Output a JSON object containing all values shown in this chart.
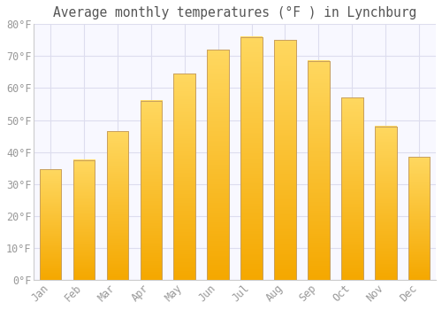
{
  "title": "Average monthly temperatures (°F ) in Lynchburg",
  "months": [
    "Jan",
    "Feb",
    "Mar",
    "Apr",
    "May",
    "Jun",
    "Jul",
    "Aug",
    "Sep",
    "Oct",
    "Nov",
    "Dec"
  ],
  "values": [
    34.5,
    37.5,
    46.5,
    56.0,
    64.5,
    72.0,
    76.0,
    75.0,
    68.5,
    57.0,
    48.0,
    38.5
  ],
  "bar_color_bottom": "#F5A800",
  "bar_color_top": "#FFD860",
  "bar_edge_color": "#C8A060",
  "background_color": "#FFFFFF",
  "plot_bg_color": "#F8F8FF",
  "grid_color": "#DDDDEE",
  "text_color": "#999999",
  "title_color": "#555555",
  "ylim": [
    0,
    80
  ],
  "yticks": [
    0,
    10,
    20,
    30,
    40,
    50,
    60,
    70,
    80
  ],
  "ytick_labels": [
    "0°F",
    "10°F",
    "20°F",
    "30°F",
    "40°F",
    "50°F",
    "60°F",
    "70°F",
    "80°F"
  ],
  "title_fontsize": 10.5,
  "tick_fontsize": 8.5,
  "font_family": "monospace",
  "bar_width": 0.65
}
